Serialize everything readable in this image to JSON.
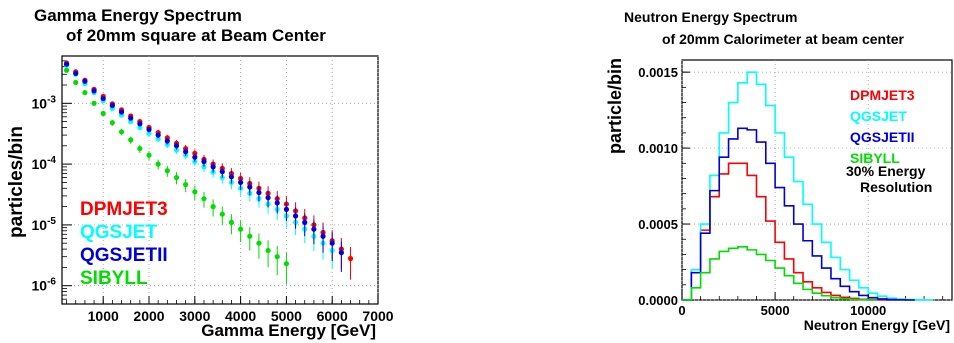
{
  "chart_data": [
    {
      "type": "scatter",
      "title_line1": "Gamma Energy Spectrum",
      "title_line2": "of 20mm square at Beam Center",
      "xlabel": "Gamma Energy [GeV]",
      "ylabel": "particles/bin",
      "xlim": [
        100,
        7000
      ],
      "ylim": [
        5e-07,
        0.006
      ],
      "log_y": true,
      "grid": true,
      "x_ticks": [
        1000,
        2000,
        3000,
        4000,
        5000,
        6000,
        7000
      ],
      "x_tick_labels": [
        "1000",
        "2000",
        "3000",
        "4000",
        "5000",
        "6000",
        "7000"
      ],
      "y_ticks": [
        1e-06,
        1e-05,
        0.0001,
        0.001
      ],
      "y_tick_labels": [
        "10-6",
        "10-5",
        "10-4",
        "10-3"
      ],
      "legend_position": "bottom-left",
      "series": [
        {
          "name": "DPMJET3",
          "color": "#ff0000",
          "x": [
            200,
            400,
            600,
            800,
            1000,
            1200,
            1400,
            1600,
            1800,
            2000,
            2200,
            2400,
            2600,
            2800,
            3000,
            3200,
            3400,
            3600,
            3800,
            4000,
            4200,
            4400,
            4600,
            4800,
            5000,
            5200,
            5400,
            5600,
            5800,
            6000,
            6200,
            6400
          ],
          "y": [
            0.0046,
            0.0033,
            0.0024,
            0.0017,
            0.0013,
            0.00098,
            0.00078,
            0.00062,
            0.0005,
            0.0004,
            0.00033,
            0.00027,
            0.00022,
            0.00018,
            0.00015,
            0.00012,
            0.0001,
            8.5e-05,
            7e-05,
            5.8e-05,
            4.8e-05,
            4e-05,
            3.3e-05,
            2.7e-05,
            2.2e-05,
            1.7e-05,
            1.3e-05,
            1e-05,
            7.5e-06,
            5.5e-06,
            4e-06,
            2.8e-06
          ]
        },
        {
          "name": "QGSJET",
          "color": "#00ffff",
          "x": [
            200,
            400,
            600,
            800,
            1000,
            1200,
            1400,
            1600,
            1800,
            2000,
            2200,
            2400,
            2600,
            2800,
            3000,
            3200,
            3400,
            3600,
            3800,
            4000,
            4200,
            4400,
            4600,
            4800,
            5000,
            5200,
            5400,
            5600,
            5800,
            6000
          ],
          "y": [
            0.0042,
            0.003,
            0.0021,
            0.0015,
            0.0011,
            0.00082,
            0.00064,
            0.0005,
            0.0004,
            0.00032,
            0.00026,
            0.00021,
            0.00017,
            0.00014,
            0.00011,
            9e-05,
            7.4e-05,
            6e-05,
            5e-05,
            4e-05,
            3.3e-05,
            2.7e-05,
            2.2e-05,
            1.8e-05,
            1.4e-05,
            1.1e-05,
            8.5e-06,
            6.5e-06,
            5e-06,
            3.8e-06
          ]
        },
        {
          "name": "QGSJETII",
          "color": "#0000dd",
          "x": [
            200,
            400,
            600,
            800,
            1000,
            1200,
            1400,
            1600,
            1800,
            2000,
            2200,
            2400,
            2600,
            2800,
            3000,
            3200,
            3400,
            3600,
            3800,
            4000,
            4200,
            4400,
            4600,
            4800,
            5000,
            5200,
            5400,
            5600,
            5800,
            6000,
            6200
          ],
          "y": [
            0.0044,
            0.0031,
            0.0023,
            0.0016,
            0.0012,
            0.00092,
            0.00072,
            0.00057,
            0.00046,
            0.00037,
            0.0003,
            0.00024,
            0.0002,
            0.00016,
            0.00013,
            0.00011,
            9e-05,
            7.5e-05,
            6.2e-05,
            5e-05,
            4.2e-05,
            3.4e-05,
            2.8e-05,
            2.3e-05,
            1.8e-05,
            1.4e-05,
            1.1e-05,
            8.5e-06,
            6.5e-06,
            5e-06,
            3.5e-06
          ]
        },
        {
          "name": "SIBYLL",
          "color": "#00dd00",
          "x": [
            200,
            400,
            600,
            800,
            1000,
            1200,
            1400,
            1600,
            1800,
            2000,
            2200,
            2400,
            2600,
            2800,
            3000,
            3200,
            3400,
            3600,
            3800,
            4000,
            4200,
            4400,
            4600,
            4800,
            5000
          ],
          "y": [
            0.0035,
            0.0022,
            0.0015,
            0.001,
            0.00068,
            0.00048,
            0.00034,
            0.00025,
            0.00018,
            0.00014,
            0.0001,
            7.8e-05,
            6e-05,
            4.6e-05,
            3.5e-05,
            2.7e-05,
            2e-05,
            1.5e-05,
            1.1e-05,
            8.5e-06,
            6.5e-06,
            5e-06,
            3.8e-06,
            3e-06,
            2.3e-06
          ]
        }
      ]
    },
    {
      "type": "line",
      "title_line1": "Neutron Energy Spectrum",
      "title_line2": "of 20mm Calorimeter at beam center",
      "xlabel": "Neutron Energy [GeV]",
      "ylabel": "particle/bin",
      "xlim": [
        0,
        14500
      ],
      "ylim": [
        0,
        0.00158
      ],
      "log_y": false,
      "grid": true,
      "x_ticks": [
        0,
        5000,
        10000
      ],
      "x_tick_labels": [
        "0",
        "5000",
        "10000"
      ],
      "y_ticks": [
        0,
        0.0005,
        0.001,
        0.0015
      ],
      "y_tick_labels": [
        "0.0000",
        "0.0005",
        "0.0010",
        "0.0015"
      ],
      "legend_position": "top-right",
      "annotation_line1": "30% Energy",
      "annotation_line2": "Resolution",
      "series": [
        {
          "name": "DPMJET3",
          "color": "#ff0000",
          "x": [
            0,
            500,
            1000,
            1500,
            2000,
            2500,
            3000,
            3500,
            4000,
            4500,
            5000,
            5500,
            6000,
            6500,
            7000,
            7500,
            8000,
            8500,
            9000,
            9500,
            10000,
            10500,
            11000
          ],
          "y": [
            0,
            0.0002,
            0.00046,
            0.00068,
            0.00083,
            0.0009,
            0.0009,
            0.00082,
            0.00068,
            0.00052,
            0.00038,
            0.00027,
            0.00018,
            0.00012,
            8e-05,
            5e-05,
            3e-05,
            1.8e-05,
            1e-05,
            5e-06,
            2e-06,
            1e-06,
            0
          ]
        },
        {
          "name": "QGSJET",
          "color": "#00ffff",
          "x": [
            0,
            500,
            1000,
            1500,
            2000,
            2500,
            3000,
            3500,
            4000,
            4500,
            5000,
            5500,
            6000,
            6500,
            7000,
            7500,
            8000,
            8500,
            9000,
            9500,
            10000,
            10500,
            11000,
            11500,
            12000,
            12500,
            13000
          ],
          "y": [
            0,
            0.0002,
            0.0005,
            0.00082,
            0.0011,
            0.0013,
            0.00143,
            0.0015,
            0.00142,
            0.00128,
            0.0011,
            0.00094,
            0.00078,
            0.00063,
            0.0005,
            0.00038,
            0.00028,
            0.0002,
            0.00013,
            8e-05,
            4.5e-05,
            2.5e-05,
            1.2e-05,
            6e-06,
            3e-06,
            1e-06,
            0
          ]
        },
        {
          "name": "QGSJETII",
          "color": "#0000dd",
          "x": [
            0,
            500,
            1000,
            1500,
            2000,
            2500,
            3000,
            3500,
            4000,
            4500,
            5000,
            5500,
            6000,
            6500,
            7000,
            7500,
            8000,
            8500,
            9000,
            9500,
            10000,
            10500,
            11000,
            11500,
            12000
          ],
          "y": [
            0,
            0.00018,
            0.00044,
            0.00072,
            0.00094,
            0.00106,
            0.00113,
            0.00112,
            0.00104,
            0.0009,
            0.00074,
            0.00062,
            0.0005,
            0.00039,
            0.00029,
            0.00021,
            0.00014,
            9e-05,
            5.5e-05,
            3e-05,
            1.5e-05,
            7e-06,
            3e-06,
            1e-06,
            0
          ]
        },
        {
          "name": "SIBYLL",
          "color": "#00dd00",
          "x": [
            0,
            500,
            1000,
            1500,
            2000,
            2500,
            3000,
            3500,
            4000,
            4500,
            5000,
            5500,
            6000,
            6500,
            7000,
            7500,
            8000,
            8500,
            9000,
            9500,
            10000
          ],
          "y": [
            0,
            8e-05,
            0.00018,
            0.00027,
            0.00032,
            0.00034,
            0.00035,
            0.00033,
            0.0003,
            0.00026,
            0.00021,
            0.00016,
            0.00011,
            7e-05,
            4.5e-05,
            2.8e-05,
            1.5e-05,
            8e-06,
            4e-06,
            2e-06,
            0
          ]
        }
      ]
    }
  ]
}
